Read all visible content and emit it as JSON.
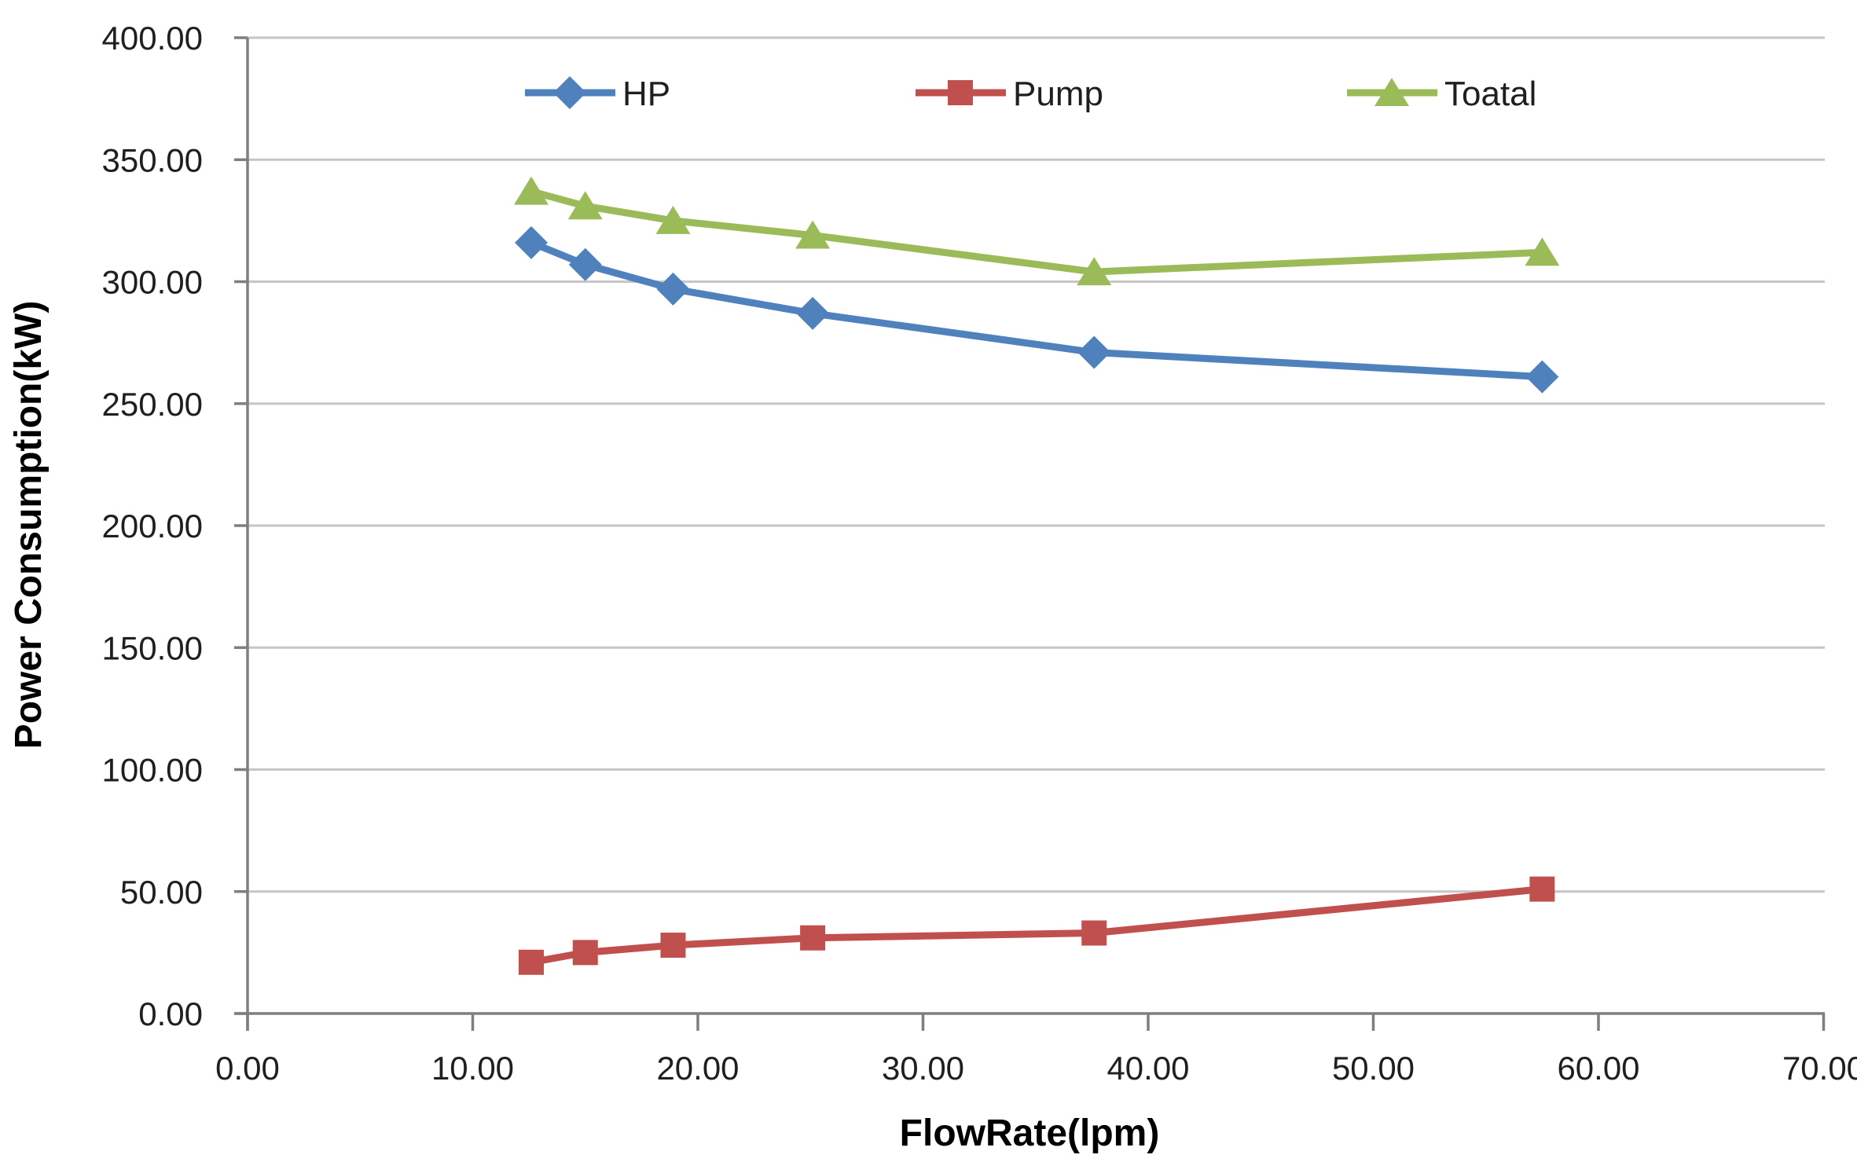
{
  "chart_data": {
    "type": "line",
    "title": "",
    "xlabel": "FlowRate(lpm)",
    "ylabel": "Power Consumption(kW)",
    "x": [
      12.6,
      15.0,
      18.9,
      25.1,
      37.6,
      57.5
    ],
    "series": [
      {
        "name": "HP",
        "marker": "diamond",
        "color": "#4F81BD",
        "values": [
          316,
          307,
          297,
          287,
          271,
          261
        ]
      },
      {
        "name": "Pump",
        "marker": "square",
        "color": "#C0504D",
        "values": [
          21,
          25,
          28,
          31,
          33,
          51
        ]
      },
      {
        "name": "Toatal",
        "marker": "triangle",
        "color": "#9BBB59",
        "values": [
          337,
          331,
          325,
          319,
          304,
          312
        ]
      }
    ],
    "xlim": [
      0,
      70
    ],
    "ylim": [
      0,
      400
    ],
    "xtick_step": 10,
    "ytick_step": 50,
    "xticks": [
      "0.00",
      "10.00",
      "20.00",
      "30.00",
      "40.00",
      "50.00",
      "60.00",
      "70.00"
    ],
    "yticks": [
      "0.00",
      "50.00",
      "100.00",
      "150.00",
      "200.00",
      "250.00",
      "300.00",
      "350.00",
      "400.00"
    ],
    "grid": "horizontal",
    "legend_position": "top-inside-horizontal",
    "colors": {
      "background": "#FFFFFF",
      "gridline": "#C6C6C6",
      "axis": "#7F7F7F",
      "tick_label": "#1F1F1F",
      "axis_title": "#000000"
    }
  }
}
